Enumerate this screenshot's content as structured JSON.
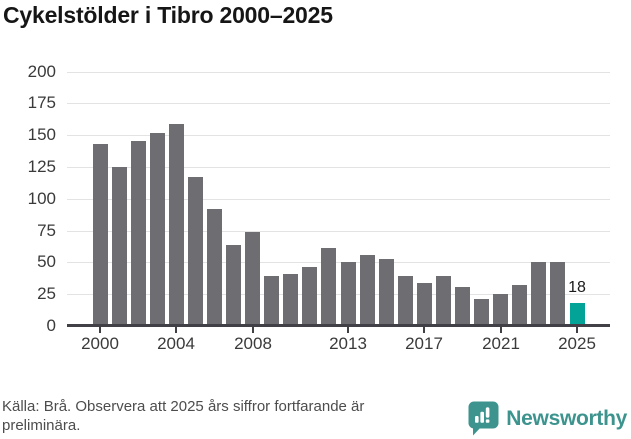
{
  "title": "Cykelstölder i Tibro 2000–2025",
  "footer": {
    "source_text": "Källa: Brå. Observera att 2025 års siffror fortfarande är preliminära.",
    "brand": {
      "name": "Newsworthy"
    }
  },
  "colors": {
    "bar": "#6d6d72",
    "highlight_bar": "#03a398",
    "gridline": "#e3e3e3",
    "axis": "#404046",
    "tick_label": "#3a3a3a",
    "title_text": "#161616",
    "footer_text": "#4d4d4d",
    "brand_teal": "#3d948e"
  },
  "chart_data": {
    "type": "bar",
    "title": "Cykelstölder i Tibro 2000–2025",
    "categories": [
      "2000",
      "2001",
      "2002",
      "2003",
      "2004",
      "2005",
      "2006",
      "2007",
      "2008",
      "2009",
      "2010",
      "2011",
      "2012",
      "2013",
      "2014",
      "2015",
      "2016",
      "2017",
      "2018",
      "2019",
      "2020",
      "2021",
      "2022",
      "2023",
      "2024",
      "2025"
    ],
    "values": [
      143,
      125,
      145,
      152,
      159,
      117,
      92,
      64,
      74,
      39,
      41,
      46,
      61,
      50,
      56,
      53,
      39,
      34,
      39,
      31,
      21,
      25,
      32,
      50,
      50,
      18
    ],
    "highlight_index": 25,
    "highlight_label": "18",
    "yticks": [
      0,
      25,
      50,
      75,
      100,
      125,
      150,
      175,
      200
    ],
    "ylim": [
      0,
      200
    ],
    "xticks": [
      {
        "index": 0,
        "label": "2000"
      },
      {
        "index": 4,
        "label": "2004"
      },
      {
        "index": 8,
        "label": "2008"
      },
      {
        "index": 13,
        "label": "2013"
      },
      {
        "index": 17,
        "label": "2017"
      },
      {
        "index": 21,
        "label": "2021"
      },
      {
        "index": 25,
        "label": "2025"
      }
    ],
    "grid": "horizontal",
    "legend": "none",
    "xlabel": "",
    "ylabel": ""
  }
}
